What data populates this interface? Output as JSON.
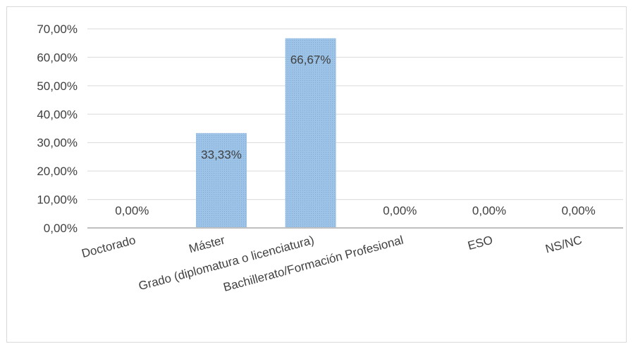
{
  "chart_data": {
    "type": "bar",
    "categories": [
      "Doctorado",
      "Máster",
      "Grado (diplomatura o licenciatura)",
      "Bachillerato/Formación Profesional",
      "ESO",
      "NS/NC"
    ],
    "values": [
      0.0,
      33.33,
      66.67,
      0.0,
      0.0,
      0.0
    ],
    "data_labels": [
      "0,00%",
      "33,33%",
      "66,67%",
      "0,00%",
      "0,00%",
      "0,00%"
    ],
    "y_ticks": [
      0,
      10,
      20,
      30,
      40,
      50,
      60,
      70
    ],
    "y_tick_labels": [
      "0,00%",
      "10,00%",
      "20,00%",
      "30,00%",
      "40,00%",
      "50,00%",
      "60,00%",
      "70,00%"
    ],
    "ylim": [
      0,
      70
    ],
    "grid": true,
    "legend": "none",
    "bar_color": "#9dc3e6",
    "bar_pattern_color": "#7fa9d6",
    "axis_color": "#bfbfbf",
    "grid_color": "#d9d9d9",
    "text_color": "#404040"
  }
}
